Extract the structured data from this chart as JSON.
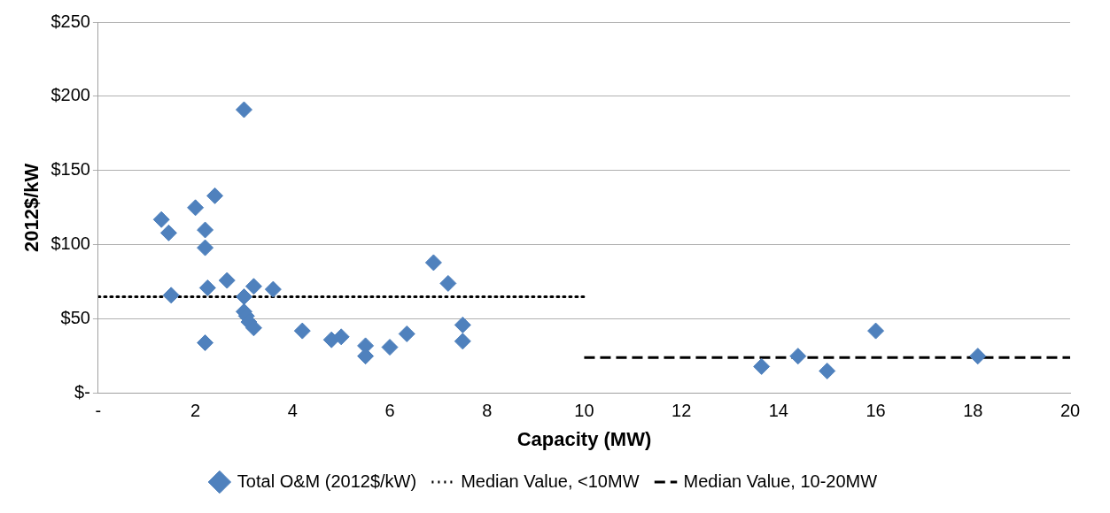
{
  "chart_data": {
    "type": "scatter",
    "xlabel": "Capacity (MW)",
    "ylabel": "2012$/kW",
    "xlim": [
      0,
      20
    ],
    "xticks": [
      {
        "value": 0,
        "label": "-"
      },
      2,
      4,
      6,
      8,
      10,
      12,
      14,
      16,
      18,
      20
    ],
    "ylim": [
      0,
      250
    ],
    "yticks": [
      {
        "value": 0,
        "label": "$-"
      },
      {
        "value": 50,
        "label": "$50"
      },
      {
        "value": 100,
        "label": "$100"
      },
      {
        "value": 150,
        "label": "$150"
      },
      {
        "value": 200,
        "label": "$200"
      },
      {
        "value": 250,
        "label": "$250"
      }
    ],
    "grid": "y",
    "legend": "bottom",
    "marker": "diamond",
    "series": [
      {
        "name": "Total O&M (2012$/kW)",
        "color": "#4f81bd",
        "x": [
          1.3,
          1.45,
          1.5,
          2.0,
          2.2,
          2.2,
          2.25,
          2.2,
          2.4,
          2.65,
          3.0,
          3.0,
          3.0,
          3.05,
          3.1,
          3.2,
          3.2,
          3.6,
          4.2,
          4.8,
          5.0,
          5.5,
          5.5,
          6.0,
          6.35,
          6.9,
          7.2,
          7.5,
          7.5,
          13.65,
          14.4,
          15.0,
          16.0,
          18.1
        ],
        "values": [
          117,
          108,
          66,
          125,
          110,
          98,
          71,
          34,
          133,
          76,
          191,
          65,
          55,
          52,
          48,
          72,
          44,
          70,
          42,
          36,
          38,
          32,
          25,
          31,
          40,
          88,
          74,
          46,
          35,
          18,
          25,
          15,
          42,
          25
        ]
      },
      {
        "name": "Median Value, <10MW",
        "type": "line",
        "color": "#000000",
        "line_style": "dotted",
        "marker": "none",
        "x": [
          0,
          10
        ],
        "values": [
          65,
          65
        ]
      },
      {
        "name": "Median Value, 10-20MW",
        "type": "line",
        "color": "#000000",
        "line_style": "dashed",
        "marker": "none",
        "x": [
          10,
          20
        ],
        "values": [
          24,
          24
        ]
      }
    ]
  }
}
